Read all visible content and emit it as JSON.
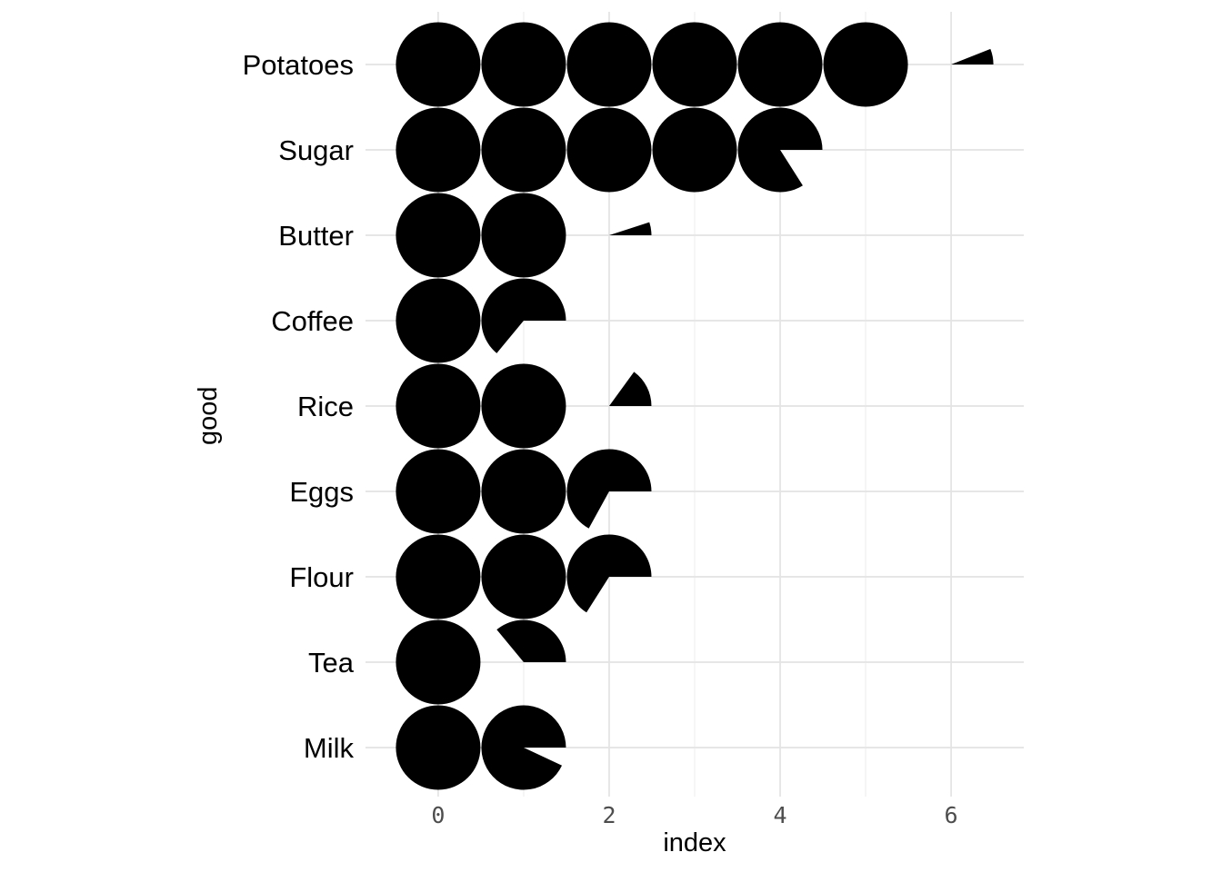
{
  "figure": {
    "background": "#ffffff"
  },
  "chart_data": {
    "type": "pictogram",
    "glyph": "pie-circle",
    "description": "Each full circle equals 1 unit of index; the fractional remainder of each value is drawn as a pie sector starting at 3 o'clock and sweeping counterclockwise.",
    "title": "",
    "xlabel": "index",
    "ylabel": "good",
    "categories": [
      "Potatoes",
      "Sugar",
      "Butter",
      "Coffee",
      "Rice",
      "Eggs",
      "Flour",
      "Tea",
      "Milk"
    ],
    "values": [
      6.06,
      4.84,
      2.05,
      1.64,
      2.15,
      2.67,
      2.66,
      1.36,
      1.93
    ],
    "x_major_ticks": [
      0,
      2,
      4,
      6
    ],
    "x_minor_ticks": [
      1,
      3,
      5
    ],
    "xlim": [
      -0.85,
      6.85
    ],
    "grid": "x: major+minor, y: major (one line per category)",
    "legend": "none",
    "colors": {
      "glyph": "#000000",
      "grid_major": "#e3e3e3",
      "grid_minor": "#eeeeee",
      "tick_label": "#4d4d4d",
      "axis_title": "#000000",
      "category_label": "#000000",
      "background": "#ffffff"
    }
  }
}
